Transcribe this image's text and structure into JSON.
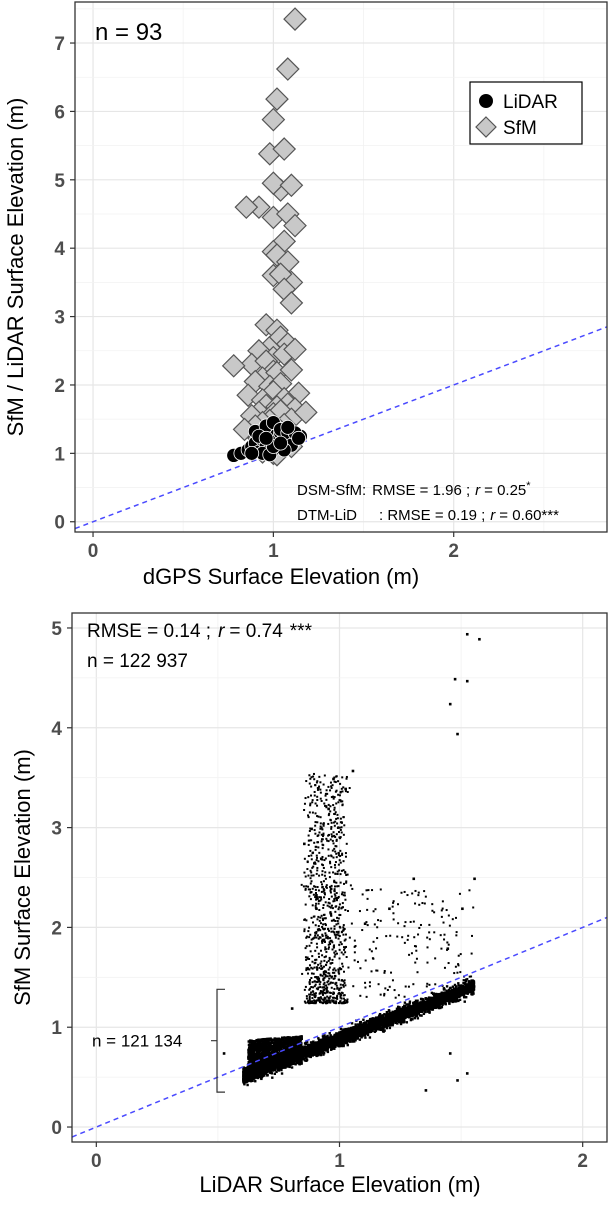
{
  "chart_data": [
    {
      "type": "scatter",
      "panel": "top",
      "xlabel": "dGPS Surface Elevation (m)",
      "ylabel": "SfM / LiDAR Surface Elevation (m)",
      "xlim": [
        -0.1,
        2.85
      ],
      "ylim": [
        -0.15,
        7.6
      ],
      "xticks": [
        "0",
        "1",
        "2"
      ],
      "yticks": [
        "0",
        "1",
        "2",
        "3",
        "4",
        "5",
        "6",
        "7"
      ],
      "grid": true,
      "count_label": "n = 93",
      "annotation_lines": [
        {
          "label": "DSM-SfM:",
          "stat": "RMSE = 1.96 ;",
          "r_symbol": "r",
          "r_value": "= 0.25",
          "sig": "*"
        },
        {
          "label": "DTM-LiD",
          "stat": ": RMSE = 0.19 ;",
          "r_symbol": "r",
          "r_value": "= 0.60",
          "sig": "***"
        }
      ],
      "legend": {
        "position": "top-right",
        "items": [
          "LiDAR",
          "SfM"
        ]
      },
      "reference_line": {
        "style": "dashed",
        "color": "#4a4aff",
        "slope": 1,
        "intercept": 0
      },
      "series": [
        {
          "name": "SfM",
          "marker": "diamond",
          "color": "#c8c8c8",
          "x": [
            1.12,
            1.08,
            1.02,
            1.0,
            0.98,
            1.06,
            1.04,
            1.0,
            0.92,
            1.1,
            1.0,
            1.08,
            0.85,
            1.12,
            1.06,
            1.0,
            1.02,
            1.08,
            1.1,
            1.0,
            1.04,
            1.06,
            1.1,
            0.96,
            1.02,
            0.98,
            1.04,
            1.08,
            0.92,
            1.0,
            0.88,
            0.96,
            1.06,
            1.12,
            1.0,
            0.94,
            1.02,
            1.1,
            0.78,
            0.9,
            0.98,
            1.04,
            1.14,
            1.0,
            0.86,
            0.94,
            1.06,
            1.08,
            0.96,
            1.02,
            1.12,
            0.92,
            0.88,
            1.0,
            1.04,
            1.1,
            0.98,
            0.94,
            1.06,
            0.9,
            1.02,
            1.18,
            0.84,
            0.96,
            1.08,
            1.0,
            1.12,
            0.92,
            1.04,
            0.98,
            1.06,
            1.1,
            0.88,
            1.0,
            0.94,
            1.02
          ],
          "y": [
            7.35,
            6.62,
            6.18,
            5.88,
            5.38,
            5.45,
            4.85,
            4.95,
            4.6,
            4.92,
            4.45,
            4.5,
            4.6,
            4.33,
            4.1,
            3.95,
            3.9,
            3.8,
            3.5,
            3.6,
            3.62,
            3.4,
            3.2,
            2.88,
            2.8,
            2.55,
            2.7,
            2.6,
            2.5,
            2.4,
            2.3,
            2.35,
            2.45,
            2.52,
            2.2,
            2.1,
            2.18,
            2.22,
            2.28,
            2.05,
            1.98,
            2.02,
            1.88,
            1.9,
            1.85,
            1.78,
            1.8,
            1.72,
            1.7,
            1.68,
            1.65,
            1.6,
            1.55,
            1.58,
            1.62,
            1.5,
            1.48,
            1.45,
            1.42,
            1.4,
            1.38,
            1.6,
            1.35,
            1.32,
            1.3,
            1.28,
            1.25,
            1.22,
            1.2,
            1.15,
            1.12,
            1.1,
            1.05,
            1.0,
            1.02,
            0.98
          ]
        },
        {
          "name": "LiDAR",
          "marker": "circle",
          "color": "#000000",
          "x": [
            0.78,
            0.82,
            0.86,
            0.88,
            0.9,
            0.92,
            0.94,
            0.96,
            0.98,
            1.0,
            1.02,
            1.04,
            1.06,
            1.08,
            1.1,
            1.12,
            1.15,
            0.9,
            0.96,
            1.0,
            1.04,
            1.08,
            0.94,
            1.02,
            1.1,
            0.98,
            1.06,
            0.92,
            1.12,
            1.0,
            0.88,
            1.04,
            0.96,
            1.08,
            1.14
          ],
          "y": [
            0.97,
            1.0,
            1.05,
            1.1,
            1.15,
            1.02,
            1.2,
            1.12,
            1.05,
            1.25,
            1.18,
            1.3,
            1.22,
            1.15,
            1.28,
            1.2,
            1.25,
            1.32,
            1.4,
            1.45,
            1.35,
            1.3,
            1.0,
            1.08,
            1.12,
            0.98,
            1.05,
            1.25,
            1.3,
            1.1,
            1.0,
            1.15,
            1.22,
            1.38,
            1.22
          ]
        }
      ]
    },
    {
      "type": "scatter",
      "panel": "bottom",
      "xlabel": "LiDAR Surface Elevation (m)",
      "ylabel": "SfM Surface Elevation (m)",
      "xlim": [
        -0.1,
        2.1
      ],
      "ylim": [
        -0.15,
        5.15
      ],
      "xticks": [
        "0",
        "1",
        "2"
      ],
      "yticks": [
        "0",
        "1",
        "2",
        "3",
        "4",
        "5"
      ],
      "grid": true,
      "stats_line": {
        "stat": "RMSE = 0.14 ;",
        "r_symbol": "r",
        "r_value": "= 0.74",
        "sig": "***"
      },
      "count_label": "n = 122 937",
      "bracket_label": "n = 121 134",
      "bracket_range": [
        0.35,
        1.38
      ],
      "reference_line": {
        "style": "dashed",
        "color": "#4a4aff",
        "slope": 1,
        "intercept": 0
      },
      "sampled_points": [
        [
          1.52,
          4.95
        ],
        [
          1.57,
          4.9
        ],
        [
          1.47,
          4.5
        ],
        [
          1.52,
          4.48
        ],
        [
          1.45,
          4.25
        ],
        [
          1.48,
          3.95
        ],
        [
          1.55,
          2.5
        ],
        [
          1.5,
          2.2
        ],
        [
          1.44,
          1.8
        ],
        [
          1.1,
          2.05
        ],
        [
          1.2,
          2.2
        ],
        [
          1.3,
          2.5
        ],
        [
          1.45,
          0.75
        ],
        [
          1.52,
          0.55
        ],
        [
          1.48,
          0.48
        ],
        [
          1.35,
          0.38
        ],
        [
          1.05,
          3.58
        ],
        [
          0.97,
          3.5
        ],
        [
          1.02,
          3.4
        ],
        [
          0.95,
          3.2
        ],
        [
          0.88,
          3.0
        ],
        [
          0.92,
          2.7
        ],
        [
          0.85,
          2.85
        ],
        [
          0.96,
          2.4
        ],
        [
          0.9,
          2.2
        ],
        [
          0.86,
          1.6
        ],
        [
          0.8,
          1.2
        ],
        [
          0.52,
          0.75
        ]
      ],
      "dense_regions": [
        {
          "x_from": 0.62,
          "x_to": 1.58,
          "y_from": 0.62,
          "y_to": 1.55,
          "note": "main cloud along 1:1 band"
        },
        {
          "x_from": 0.62,
          "x_to": 0.82,
          "y_from": 0.5,
          "y_to": 0.8,
          "note": "low cluster"
        },
        {
          "x_from": 0.85,
          "x_to": 1.0,
          "y_from": 1.3,
          "y_to": 3.5,
          "note": "vertical plume"
        }
      ]
    }
  ]
}
